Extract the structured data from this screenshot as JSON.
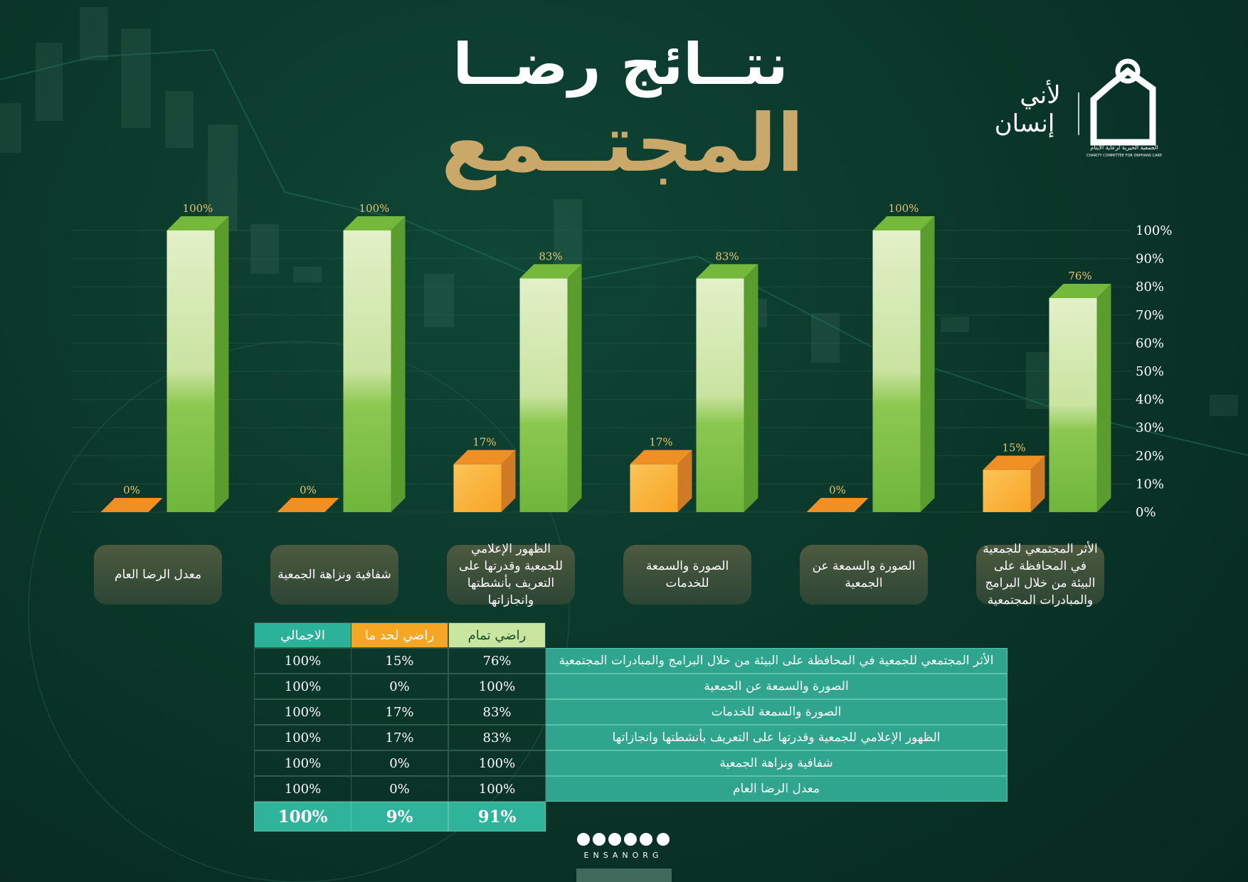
{
  "header": {
    "title_line1": "نتــائج رضــا",
    "title_line2": "المجتــمع"
  },
  "logo": {
    "tagline_1": "لأني",
    "tagline_2": "إنسان",
    "org_name": "الجمعية الخيرية لرعاية الأيتام",
    "org_name_en": "CHARITY COMMITTEE FOR ORPHANS CARE"
  },
  "chart_data": {
    "type": "bar3d",
    "categories": [
      "الأثر المجتمعي للجمعية في المحافظة على البيئة من خلال البرامج والمبادرات المجتمعية",
      "الصورة والسمعة عن الجمعية",
      "الصورة والسمعة للخدمات",
      "الظهور الإعلامي للجمعية وقدرتها على التعريف بأنشطتها وانجازاتها",
      "شفافية ونزاهة الجمعية",
      "معدل الرضا العام"
    ],
    "series": [
      {
        "name": "راضي تمام",
        "color": "#74b83c",
        "values": [
          76,
          100,
          83,
          83,
          100,
          100
        ],
        "value_labels": [
          "76%",
          "100%",
          "83%",
          "83%",
          "100%",
          "100%"
        ]
      },
      {
        "name": "راضي لحد ما",
        "color": "#f08f23",
        "values": [
          15,
          0,
          17,
          17,
          0,
          0
        ],
        "value_labels": [
          "15%",
          "0%",
          "17%",
          "17%",
          "0%",
          "0%"
        ]
      }
    ],
    "ylim": [
      0,
      100
    ],
    "yticks": [
      {
        "value": 0,
        "label": "0%"
      },
      {
        "value": 10,
        "label": "10%"
      },
      {
        "value": 20,
        "label": "20%"
      },
      {
        "value": 30,
        "label": "30%"
      },
      {
        "value": 40,
        "label": "40%"
      },
      {
        "value": 50,
        "label": "50%"
      },
      {
        "value": 60,
        "label": "60%"
      },
      {
        "value": 70,
        "label": "70%"
      },
      {
        "value": 80,
        "label": "80%"
      },
      {
        "value": 90,
        "label": "90%"
      },
      {
        "value": 100,
        "label": "100%"
      }
    ],
    "grid": true
  },
  "table": {
    "columns": [
      "راضي تمام",
      "راضي لحد ما",
      "الاجمالي"
    ],
    "rows": [
      {
        "label": "الأثر المجتمعي للجمعية في المحافظة على البيئة من خلال البرامج والمبادرات المجتمعية",
        "cells": [
          "76%",
          "15%",
          "100%"
        ]
      },
      {
        "label": "الصورة والسمعة عن الجمعية",
        "cells": [
          "100%",
          "0%",
          "100%"
        ]
      },
      {
        "label": "الصورة والسمعة للخدمات",
        "cells": [
          "83%",
          "17%",
          "100%"
        ]
      },
      {
        "label": "الظهور الإعلامي للجمعية وقدرتها على التعريف بأنشطتها وانجازاتها",
        "cells": [
          "83%",
          "17%",
          "100%"
        ]
      },
      {
        "label": "شفافية ونزاهة الجمعية",
        "cells": [
          "100%",
          "0%",
          "100%"
        ]
      },
      {
        "label": "معدل الرضا العام",
        "cells": [
          "100%",
          "0%",
          "100%"
        ]
      }
    ],
    "total": [
      "91%",
      "9%",
      "100%"
    ]
  },
  "footer": {
    "handle": "ENSANORG"
  }
}
